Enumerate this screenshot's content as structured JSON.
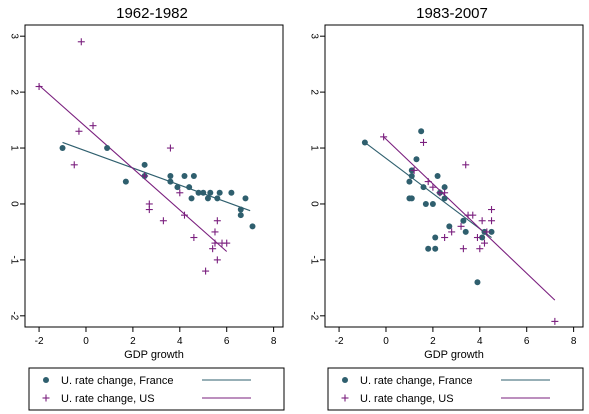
{
  "colors": {
    "france": "#2f5f6e",
    "us": "#7a1f7e",
    "axis": "#000000",
    "frame": "#000000",
    "background": "#ffffff"
  },
  "chart_data": [
    {
      "type": "scatter",
      "title": "1962-1982",
      "xlabel": "GDP growth",
      "ylabel": "",
      "xlim": [
        -2.6,
        8.4
      ],
      "ylim": [
        -2.2,
        3.2
      ],
      "xticks": [
        -2,
        0,
        2,
        4,
        6,
        8
      ],
      "yticks": [
        -2,
        -1,
        0,
        1,
        2,
        3
      ],
      "series": [
        {
          "name": "U. rate change, France",
          "marker": "dot",
          "points": [
            [
              -1,
              1.0
            ],
            [
              0.9,
              1.0
            ],
            [
              1.7,
              0.4
            ],
            [
              2.5,
              0.7
            ],
            [
              2.5,
              0.5
            ],
            [
              3.6,
              0.5
            ],
            [
              3.6,
              0.4
            ],
            [
              3.9,
              0.3
            ],
            [
              4.2,
              0.5
            ],
            [
              4.4,
              0.3
            ],
            [
              4.6,
              0.5
            ],
            [
              4.5,
              0.1
            ],
            [
              4.8,
              0.2
            ],
            [
              5.0,
              0.2
            ],
            [
              5.2,
              0.1
            ],
            [
              5.3,
              0.2
            ],
            [
              5.6,
              0.1
            ],
            [
              5.7,
              0.2
            ],
            [
              6.2,
              0.2
            ],
            [
              6.6,
              -0.2
            ],
            [
              6.6,
              -0.1
            ],
            [
              6.8,
              0.1
            ],
            [
              7.1,
              -0.4
            ]
          ]
        },
        {
          "name": "U. rate change, US",
          "marker": "plus",
          "points": [
            [
              -2,
              2.1
            ],
            [
              -0.5,
              0.7
            ],
            [
              -0.3,
              1.3
            ],
            [
              -0.2,
              2.9
            ],
            [
              0.3,
              1.4
            ],
            [
              2.5,
              0.5
            ],
            [
              2.7,
              0.0
            ],
            [
              2.7,
              -0.1
            ],
            [
              3.3,
              -0.3
            ],
            [
              3.6,
              1.0
            ],
            [
              4.0,
              0.2
            ],
            [
              4.2,
              -0.2
            ],
            [
              4.6,
              -0.6
            ],
            [
              5.1,
              -1.2
            ],
            [
              5.4,
              -0.8
            ],
            [
              5.5,
              -0.7
            ],
            [
              5.5,
              -0.5
            ],
            [
              5.6,
              -0.3
            ],
            [
              5.6,
              -1.0
            ],
            [
              5.8,
              -0.7
            ],
            [
              6.0,
              -0.7
            ]
          ]
        }
      ],
      "fit_lines": [
        {
          "series": "U. rate change, France",
          "x": [
            -1,
            7
          ],
          "y": [
            1.1,
            -0.12
          ]
        },
        {
          "series": "U. rate change, US",
          "x": [
            -2,
            6
          ],
          "y": [
            2.12,
            -0.85
          ]
        }
      ]
    },
    {
      "type": "scatter",
      "title": "1983-2007",
      "xlabel": "GDP growth",
      "ylabel": "",
      "xlim": [
        -2.6,
        8.4
      ],
      "ylim": [
        -2.2,
        3.2
      ],
      "xticks": [
        -2,
        0,
        2,
        4,
        6,
        8
      ],
      "yticks": [
        -2,
        -1,
        0,
        1,
        2,
        3
      ],
      "series": [
        {
          "name": "U. rate change, France",
          "marker": "dot",
          "points": [
            [
              -0.9,
              1.1
            ],
            [
              1.0,
              0.4
            ],
            [
              1.1,
              0.6
            ],
            [
              1.1,
              0.5
            ],
            [
              1.0,
              0.1
            ],
            [
              1.1,
              0.1
            ],
            [
              1.3,
              0.8
            ],
            [
              1.5,
              1.3
            ],
            [
              1.6,
              0.3
            ],
            [
              1.7,
              0.0
            ],
            [
              1.8,
              -0.8
            ],
            [
              2.0,
              0.0
            ],
            [
              2.1,
              -0.6
            ],
            [
              2.1,
              -0.8
            ],
            [
              2.2,
              0.5
            ],
            [
              2.3,
              0.2
            ],
            [
              2.5,
              0.3
            ],
            [
              2.5,
              0.1
            ],
            [
              2.7,
              -0.4
            ],
            [
              3.3,
              -0.3
            ],
            [
              3.4,
              -0.5
            ],
            [
              3.9,
              -1.4
            ],
            [
              4.1,
              -0.6
            ],
            [
              4.2,
              -0.5
            ],
            [
              4.5,
              -0.5
            ]
          ]
        },
        {
          "name": "U. rate change, US",
          "marker": "plus",
          "points": [
            [
              -0.1,
              1.2
            ],
            [
              1.2,
              0.6
            ],
            [
              1.6,
              1.1
            ],
            [
              1.8,
              0.4
            ],
            [
              2.0,
              0.3
            ],
            [
              2.3,
              0.2
            ],
            [
              2.5,
              0.2
            ],
            [
              2.5,
              -0.6
            ],
            [
              2.8,
              -0.5
            ],
            [
              3.2,
              -0.4
            ],
            [
              3.3,
              -0.8
            ],
            [
              3.4,
              0.7
            ],
            [
              3.5,
              -0.2
            ],
            [
              3.7,
              -0.2
            ],
            [
              3.9,
              -0.6
            ],
            [
              4.0,
              -0.8
            ],
            [
              4.1,
              -0.3
            ],
            [
              4.2,
              -0.7
            ],
            [
              4.3,
              -0.5
            ],
            [
              4.5,
              -0.1
            ],
            [
              4.5,
              -0.3
            ],
            [
              7.2,
              -2.1
            ]
          ]
        }
      ],
      "fit_lines": [
        {
          "series": "U. rate change, France",
          "x": [
            -0.9,
            4.5
          ],
          "y": [
            1.1,
            -0.6
          ]
        },
        {
          "series": "U. rate change, US",
          "x": [
            -0.1,
            7.2
          ],
          "y": [
            1.2,
            -1.72
          ]
        }
      ]
    }
  ]
}
